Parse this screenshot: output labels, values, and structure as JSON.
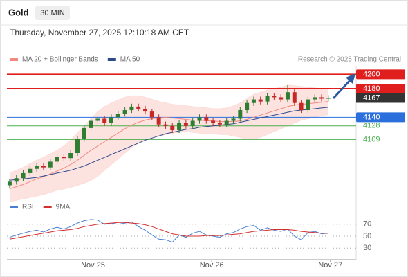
{
  "header": {
    "symbol": "Gold",
    "interval": "30 MIN",
    "timestamp": "Thursday, November 27, 2025 12:10:18 AM CET"
  },
  "chart_data": [
    {
      "type": "candlestick",
      "source": "Research © 2025 Trading Central",
      "x": [
        0,
        1,
        2,
        3,
        4,
        5,
        6,
        7,
        8,
        9,
        10,
        11,
        12,
        13,
        14,
        15,
        16,
        17,
        18,
        19,
        20,
        21,
        22,
        23,
        24,
        25,
        26,
        27,
        28,
        29,
        30,
        31,
        32,
        33,
        34,
        35,
        36,
        37,
        38,
        39,
        40,
        41,
        42,
        43,
        44,
        45,
        46,
        47
      ],
      "open": [
        4045,
        4050,
        4055,
        4062,
        4068,
        4072,
        4070,
        4078,
        4085,
        4083,
        4090,
        4110,
        4125,
        4135,
        4138,
        4132,
        4140,
        4145,
        4150,
        4155,
        4152,
        4148,
        4140,
        4130,
        4128,
        4122,
        4132,
        4128,
        4135,
        4140,
        4135,
        4132,
        4130,
        4135,
        4138,
        4150,
        4160,
        4165,
        4162,
        4170,
        4168,
        4165,
        4175,
        4160,
        4150,
        4165,
        4168,
        4166
      ],
      "high": [
        4054,
        4059,
        4066,
        4072,
        4076,
        4076,
        4082,
        4089,
        4089,
        4094,
        4114,
        4129,
        4139,
        4142,
        4142,
        4144,
        4149,
        4154,
        4159,
        4159,
        4156,
        4152,
        4144,
        4134,
        4132,
        4136,
        4136,
        4139,
        4144,
        4144,
        4139,
        4136,
        4139,
        4142,
        4154,
        4164,
        4169,
        4169,
        4174,
        4174,
        4172,
        4185,
        4179,
        4164,
        4169,
        4172,
        4172,
        4171
      ],
      "low": [
        4041,
        4046,
        4051,
        4058,
        4064,
        4066,
        4066,
        4074,
        4079,
        4079,
        4086,
        4106,
        4121,
        4131,
        4128,
        4128,
        4136,
        4141,
        4146,
        4148,
        4144,
        4136,
        4126,
        4124,
        4118,
        4118,
        4124,
        4124,
        4131,
        4131,
        4128,
        4126,
        4126,
        4131,
        4134,
        4146,
        4156,
        4158,
        4158,
        4164,
        4161,
        4161,
        4156,
        4146,
        4146,
        4161,
        4162,
        4162
      ],
      "close": [
        4050,
        4055,
        4062,
        4068,
        4072,
        4070,
        4078,
        4085,
        4083,
        4090,
        4110,
        4125,
        4135,
        4138,
        4132,
        4140,
        4145,
        4150,
        4155,
        4152,
        4148,
        4140,
        4130,
        4128,
        4122,
        4132,
        4128,
        4135,
        4140,
        4135,
        4132,
        4130,
        4135,
        4138,
        4150,
        4160,
        4165,
        4162,
        4170,
        4168,
        4165,
        4175,
        4160,
        4150,
        4165,
        4168,
        4166,
        4167
      ],
      "up_color": "#2e7d32",
      "down_color": "#c62828",
      "series": [
        {
          "name": "MA 20 + Bollinger Bands",
          "color": "#f08a80",
          "band_color": "#fcdcd8",
          "values": [
            4040,
            4043,
            4046,
            4050,
            4054,
            4057,
            4061,
            4065,
            4069,
            4074,
            4080,
            4087,
            4094,
            4100,
            4106,
            4112,
            4118,
            4124,
            4129,
            4133,
            4136,
            4138,
            4139,
            4140,
            4139,
            4138,
            4137,
            4136,
            4136,
            4135,
            4135,
            4134,
            4134,
            4134,
            4135,
            4137,
            4140,
            4143,
            4146,
            4149,
            4152,
            4155,
            4157,
            4158,
            4159,
            4160,
            4161,
            4162
          ],
          "upper": [
            4062,
            4066,
            4070,
            4075,
            4080,
            4084,
            4089,
            4094,
            4100,
            4108,
            4118,
            4128,
            4138,
            4148,
            4155,
            4160,
            4164,
            4168,
            4170,
            4170,
            4168,
            4165,
            4162,
            4160,
            4158,
            4157,
            4156,
            4155,
            4154,
            4153,
            4152,
            4152,
            4153,
            4156,
            4160,
            4166,
            4172,
            4175,
            4178,
            4180,
            4182,
            4185,
            4184,
            4183,
            4182,
            4181,
            4180,
            4180
          ],
          "lower": [
            4022,
            4024,
            4026,
            4028,
            4030,
            4032,
            4035,
            4038,
            4040,
            4042,
            4045,
            4048,
            4052,
            4058,
            4066,
            4074,
            4082,
            4090,
            4098,
            4104,
            4108,
            4111,
            4114,
            4116,
            4118,
            4119,
            4120,
            4119,
            4118,
            4117,
            4117,
            4116,
            4116,
            4114,
            4112,
            4110,
            4110,
            4112,
            4116,
            4120,
            4124,
            4128,
            4132,
            4136,
            4138,
            4140,
            4142,
            4144
          ]
        },
        {
          "name": "MA 50",
          "color": "#2c4a8c",
          "values": [
            4052,
            4053,
            4054,
            4055,
            4056,
            4058,
            4060,
            4062,
            4064,
            4066,
            4069,
            4072,
            4076,
            4080,
            4084,
            4088,
            4092,
            4096,
            4100,
            4104,
            4108,
            4111,
            4114,
            4117,
            4119,
            4121,
            4123,
            4124,
            4126,
            4127,
            4128,
            4129,
            4130,
            4131,
            4133,
            4135,
            4137,
            4139,
            4141,
            4143,
            4145,
            4147,
            4149,
            4150,
            4151,
            4152,
            4153,
            4154
          ]
        }
      ],
      "levels": [
        {
          "value": 4200,
          "color": "#e01e1e",
          "style": "box"
        },
        {
          "value": 4180,
          "color": "#e01e1e",
          "style": "box"
        },
        {
          "value": 4167,
          "color": "#333333",
          "style": "current"
        },
        {
          "value": 4140,
          "color": "#2a6fdb",
          "style": "box"
        },
        {
          "value": 4128,
          "color": "#4caf50",
          "style": "text"
        },
        {
          "value": 4109,
          "color": "#4caf50",
          "style": "text"
        }
      ],
      "xlim": [
        -0.4,
        51.1
      ],
      "ylim": [
        4042,
        4212
      ]
    },
    {
      "type": "line",
      "x": [
        0,
        1,
        2,
        3,
        4,
        5,
        6,
        7,
        8,
        9,
        10,
        11,
        12,
        13,
        14,
        15,
        16,
        17,
        18,
        19,
        20,
        21,
        22,
        23,
        24,
        25,
        26,
        27,
        28,
        29,
        30,
        31,
        32,
        33,
        34,
        35,
        36,
        37,
        38,
        39,
        40,
        41,
        42,
        43,
        44,
        45,
        46,
        47
      ],
      "series": [
        {
          "name": "RSI",
          "color": "#4a7fd4",
          "values": [
            48,
            52,
            55,
            58,
            60,
            57,
            62,
            65,
            62,
            66,
            72,
            76,
            78,
            77,
            70,
            72,
            70,
            72,
            74,
            66,
            60,
            52,
            45,
            44,
            40,
            52,
            48,
            55,
            58,
            52,
            50,
            48,
            54,
            56,
            62,
            66,
            68,
            60,
            64,
            60,
            58,
            62,
            50,
            44,
            56,
            58,
            54,
            55
          ]
        },
        {
          "name": "9MA",
          "color": "#d32f2f",
          "values": [
            45,
            47,
            49,
            51,
            53,
            55,
            57,
            59,
            60,
            61,
            63,
            66,
            68,
            70,
            71,
            72,
            73,
            73,
            72,
            71,
            69,
            66,
            62,
            58,
            54,
            52,
            50,
            50,
            50,
            51,
            51,
            51,
            52,
            53,
            54,
            56,
            58,
            59,
            60,
            61,
            61,
            61,
            60,
            58,
            57,
            56,
            55,
            55
          ]
        }
      ],
      "xlim": [
        -0.4,
        51.1
      ],
      "ylim": [
        14,
        86
      ],
      "yticks": [
        70,
        50,
        30
      ],
      "xticks": [
        {
          "value": 12.3,
          "label": "Nov 25"
        },
        {
          "value": 29.8,
          "label": "Nov 26"
        },
        {
          "value": 47.3,
          "label": "Nov 27"
        }
      ]
    }
  ]
}
